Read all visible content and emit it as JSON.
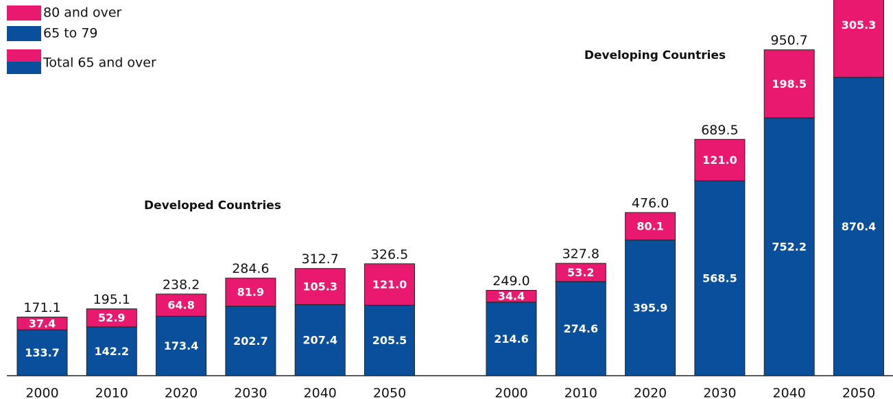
{
  "legend": {
    "items": [
      "80 and over",
      "65 to 79",
      "Total 65 and over"
    ]
  },
  "chart_data": [
    {
      "type": "bar",
      "title": "Developed Countries",
      "categories": [
        "2000",
        "2010",
        "2020",
        "2030",
        "2040",
        "2050"
      ],
      "series": [
        {
          "color": "#0a4f9c",
          "values": [
            133.7,
            142.2,
            173.4,
            202.7,
            207.4,
            205.5
          ],
          "value_labels": [
            "133.7",
            "142.2",
            "173.4",
            "202.7",
            "207.4",
            "205.5"
          ]
        },
        {
          "color": "#e8196e",
          "values": [
            37.4,
            52.9,
            64.8,
            81.9,
            105.3,
            121
          ],
          "value_labels": [
            "37.4",
            "52.9",
            "64.8",
            "81.9",
            "105.3",
            "121.0"
          ]
        }
      ],
      "totals": [
        171.1,
        195.1,
        238.2,
        284.6,
        312.7,
        326.5
      ]
    },
    {
      "type": "bar",
      "title": "Developing Countries",
      "categories": [
        "2000",
        "2010",
        "2020",
        "2030",
        "2040",
        "2050"
      ],
      "series": [
        {
          "color": "#0a4f9c",
          "values": [
            214.6,
            274.6,
            395.9,
            568.5,
            752.2,
            870.4
          ],
          "value_labels": [
            "214.6",
            "274.6",
            "395.9",
            "568.5",
            "752.2",
            "870.4"
          ]
        },
        {
          "color": "#e8196e",
          "values": [
            34.4,
            53.2,
            80.1,
            121,
            198.5,
            305.3
          ],
          "value_labels": [
            "34.4",
            "53.2",
            "80.1",
            "121.0",
            "198.5",
            "305.3"
          ]
        }
      ],
      "totals": [
        249,
        327.8,
        476,
        689.5,
        950.7,
        null
      ],
      "total_labels": [
        "249.0",
        "327.8",
        "476.0",
        "689.5",
        "950.7",
        null
      ]
    }
  ]
}
